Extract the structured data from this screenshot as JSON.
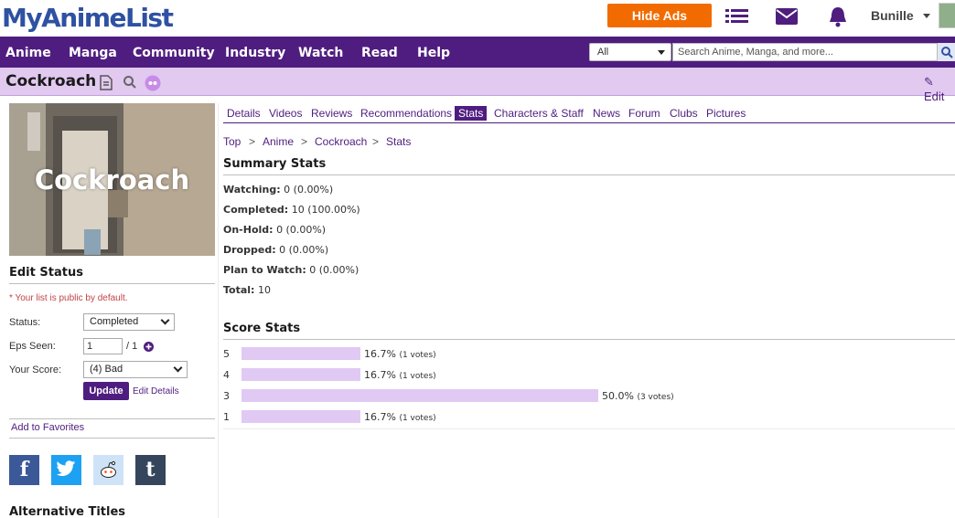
{
  "header": {
    "logo": "MyAnimeList",
    "hide_ads": "Hide Ads",
    "username": "Bunille"
  },
  "nav": {
    "items": [
      "Anime",
      "Manga",
      "Community",
      "Industry",
      "Watch",
      "Read",
      "Help"
    ],
    "search_scope": "All",
    "search_placeholder": "Search Anime, Manga, and more..."
  },
  "title": {
    "name": "Cockroach",
    "edit": "Edit"
  },
  "sidebar": {
    "cover_text": "Cockroach",
    "edit_status_heading": "Edit Status",
    "public_note": "* Your list is public by default.",
    "status_label": "Status:",
    "status_value": "Completed",
    "eps_label": "Eps Seen:",
    "eps_value": "1",
    "eps_total": "/ 1",
    "score_label": "Your Score:",
    "score_value": "(4) Bad",
    "update_button": "Update",
    "edit_details": "Edit Details",
    "add_favorites": "Add to Favorites",
    "alt_titles_heading": "Alternative Titles"
  },
  "tabs": [
    "Details",
    "Videos",
    "Reviews",
    "Recommendations",
    "Stats",
    "Characters & Staff",
    "News",
    "Forum",
    "Clubs",
    "Pictures"
  ],
  "active_tab": "Stats",
  "breadcrumb": [
    "Top",
    "Anime",
    "Cockroach",
    "Stats"
  ],
  "summary": {
    "heading": "Summary Stats",
    "rows": [
      {
        "label": "Watching:",
        "value": "0 (0.00%)"
      },
      {
        "label": "Completed:",
        "value": "10 (100.00%)"
      },
      {
        "label": "On-Hold:",
        "value": "0 (0.00%)"
      },
      {
        "label": "Dropped:",
        "value": "0 (0.00%)"
      },
      {
        "label": "Plan to Watch:",
        "value": "0 (0.00%)"
      },
      {
        "label": "Total:",
        "value": "10"
      }
    ]
  },
  "score_stats": {
    "heading": "Score Stats",
    "rows": [
      {
        "score": "5",
        "percent": 16.7,
        "pct_text": "16.7%",
        "votes": "(1 votes)"
      },
      {
        "score": "4",
        "percent": 16.7,
        "pct_text": "16.7%",
        "votes": "(1 votes)"
      },
      {
        "score": "3",
        "percent": 50.0,
        "pct_text": "50.0%",
        "votes": "(3 votes)"
      },
      {
        "score": "1",
        "percent": 16.7,
        "pct_text": "16.7%",
        "votes": "(1 votes)"
      }
    ]
  }
}
